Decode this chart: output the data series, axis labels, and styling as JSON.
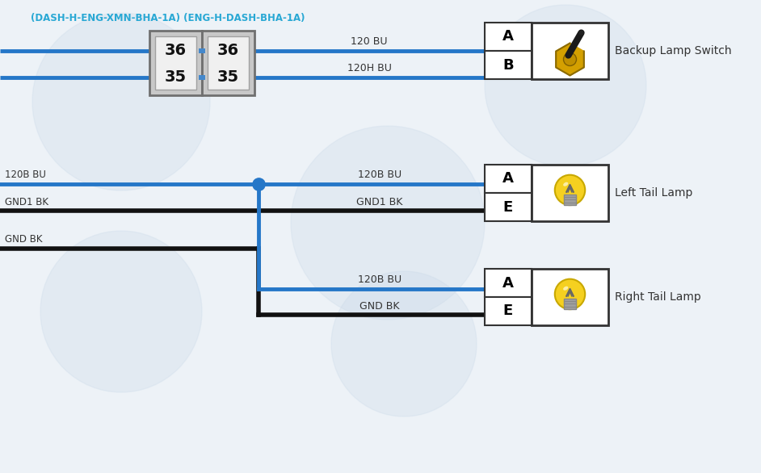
{
  "bg_color": "#eef3f8",
  "wire_blue": "#2577c8",
  "wire_black": "#111111",
  "cyan_text": "#29a8d4",
  "dark_text": "#333333",
  "header_text": "(DASH-H-ENG-XMN-BHA-1A) (ENG-H-DASH-BHA-1A)",
  "switch_label": "Backup Lamp Switch",
  "lamp1_label": "Left Tail Lamp",
  "lamp2_label": "Right Tail Lamp",
  "wire1_label": "120 BU",
  "wire2_label": "120H BU",
  "wire3_label": "120B BU",
  "wire4_label": "GND1 BK",
  "wire5_label": "GND BK",
  "wire6_label": "120B BU",
  "wire7_label": "GND1 BK",
  "wire8_label": "120B BU",
  "wire9_label": "GND BK"
}
